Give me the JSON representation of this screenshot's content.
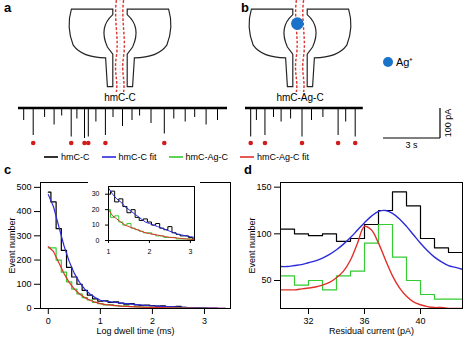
{
  "diagrams": [
    {
      "panel": "a",
      "label": "hmC-C",
      "trace": {
        "xlim": [
          0,
          11
        ],
        "events": [
          {
            "time": 0.3,
            "depth": 40
          },
          {
            "time": 0.8,
            "depth": 90
          },
          {
            "time": 1.4,
            "depth": 30
          },
          {
            "time": 1.9,
            "depth": 55
          },
          {
            "time": 2.3,
            "depth": 25
          },
          {
            "time": 2.8,
            "depth": 95
          },
          {
            "time": 3.1,
            "depth": 35
          },
          {
            "time": 3.5,
            "depth": 100
          },
          {
            "time": 3.7,
            "depth": 95
          },
          {
            "time": 4.1,
            "depth": 45
          },
          {
            "time": 4.6,
            "depth": 90
          },
          {
            "time": 5.0,
            "depth": 30
          },
          {
            "time": 5.5,
            "depth": 60
          },
          {
            "time": 6.0,
            "depth": 40
          },
          {
            "time": 6.4,
            "depth": 25
          },
          {
            "time": 7.0,
            "depth": 50
          },
          {
            "time": 7.7,
            "depth": 85
          },
          {
            "time": 8.2,
            "depth": 35
          },
          {
            "time": 8.8,
            "depth": 45
          },
          {
            "time": 9.3,
            "depth": 30
          },
          {
            "time": 9.9,
            "depth": 55
          },
          {
            "time": 10.5,
            "depth": 40
          }
        ],
        "marked_times": [
          0.8,
          2.8,
          3.5,
          3.7,
          4.6,
          7.7
        ]
      }
    },
    {
      "panel": "b",
      "label": "hmC-Ag-C",
      "ion_label": "Ag⁺",
      "trace": {
        "xlim": [
          0,
          6.2
        ],
        "events": [
          {
            "time": 0.3,
            "depth": 95
          },
          {
            "time": 0.6,
            "depth": 40
          },
          {
            "time": 1.05,
            "depth": 90
          },
          {
            "time": 1.5,
            "depth": 30
          },
          {
            "time": 1.9,
            "depth": 45
          },
          {
            "time": 2.4,
            "depth": 35
          },
          {
            "time": 3.0,
            "depth": 95
          },
          {
            "time": 3.5,
            "depth": 40
          },
          {
            "time": 4.1,
            "depth": 30
          },
          {
            "time": 4.9,
            "depth": 90
          },
          {
            "time": 5.3,
            "depth": 45
          },
          {
            "time": 5.8,
            "depth": 95
          }
        ],
        "marked_times": [
          0.3,
          1.05,
          3.0,
          4.9,
          5.8
        ]
      }
    }
  ],
  "scale_bar": {
    "current": 100,
    "current_label": "100 pA",
    "time": 3,
    "time_label": "3 s"
  },
  "chart_data": [
    {
      "panel": "c",
      "type": "line",
      "xlabel": "Log dwell time (ms)",
      "ylabel": "Event number",
      "xlim": [
        -0.15,
        3.5
      ],
      "ylim": [
        0,
        520
      ],
      "xticks": [
        0,
        1,
        2,
        3
      ],
      "yticks": [
        0,
        100,
        200,
        300,
        400,
        500
      ],
      "legend": "top",
      "x": [
        0,
        0.1,
        0.2,
        0.3,
        0.4,
        0.5,
        0.6,
        0.7,
        0.8,
        0.9,
        1.0,
        1.1,
        1.2,
        1.3,
        1.4,
        1.5,
        1.6,
        1.7,
        1.8,
        1.9,
        2.0,
        2.1,
        2.2,
        2.3,
        2.4,
        2.5,
        2.6,
        2.7,
        2.8,
        2.9,
        3.0,
        3.1,
        3.2,
        3.3,
        3.4
      ],
      "series": [
        {
          "name": "hmC-C",
          "color": "#000000",
          "line_style": "step",
          "values": [
            480,
            440,
            330,
            240,
            170,
            130,
            100,
            75,
            55,
            40,
            30,
            32,
            25,
            27,
            22,
            18,
            20,
            15,
            13,
            14,
            12,
            10,
            11,
            8,
            7,
            9,
            5,
            4,
            3,
            3,
            2,
            1,
            1,
            0,
            0
          ]
        },
        {
          "name": "hmC-C fit",
          "color": "#2b2bd9",
          "line_style": "solid",
          "values": [
            470,
            420,
            340,
            260,
            195,
            145,
            108,
            80,
            60,
            45,
            34,
            30,
            27,
            25,
            22,
            20,
            18,
            16,
            14,
            12,
            11,
            10,
            9,
            8,
            7,
            6,
            5,
            4,
            3.5,
            3,
            2.5,
            2,
            1.5,
            1,
            1
          ]
        },
        {
          "name": "hmC-Ag-C",
          "color": "#33cc33",
          "line_style": "step",
          "values": [
            250,
            250,
            200,
            150,
            110,
            80,
            60,
            45,
            35,
            25,
            20,
            15,
            16,
            12,
            10,
            11,
            8,
            7,
            6,
            5,
            5,
            4,
            3,
            3,
            2,
            2,
            2,
            1,
            1,
            1,
            1,
            0,
            0,
            0,
            0
          ]
        },
        {
          "name": "hmC-Ag-C fit",
          "color": "#e0302a",
          "line_style": "solid",
          "values": [
            255,
            235,
            190,
            145,
            108,
            80,
            60,
            45,
            34,
            26,
            20,
            16,
            14,
            12,
            10,
            9,
            8,
            7,
            6,
            5,
            4.5,
            4,
            3.5,
            3,
            2.5,
            2,
            1.8,
            1.5,
            1.2,
            1,
            0.8,
            0.6,
            0.4,
            0.3,
            0.2
          ]
        }
      ],
      "inset": {
        "xlim": [
          1,
          3.1
        ],
        "ylim": [
          0,
          35
        ],
        "xticks": [
          1,
          2,
          3
        ],
        "yticks": [
          0,
          10,
          20,
          30
        ]
      }
    },
    {
      "panel": "d",
      "type": "histogram",
      "xlabel": "Residual current (pA)",
      "ylabel": "Event number",
      "xlim": [
        30,
        43
      ],
      "ylim": [
        20,
        155
      ],
      "xticks": [
        32,
        36,
        40
      ],
      "yticks": [
        50,
        100,
        150
      ],
      "bins": [
        30,
        31,
        32,
        33,
        34,
        35,
        36,
        37,
        38,
        39,
        40,
        41,
        42,
        43
      ],
      "series": [
        {
          "color": "#000000",
          "counts": [
            105,
            100,
            98,
            100,
            92,
            95,
            110,
            125,
            145,
            130,
            95,
            85,
            80
          ]
        },
        {
          "color": "#33cc33",
          "counts": [
            55,
            45,
            50,
            40,
            55,
            60,
            90,
            110,
            75,
            50,
            35,
            30,
            30
          ]
        }
      ],
      "fits": {
        "x": [
          30,
          30.5,
          31,
          31.5,
          32,
          32.5,
          33,
          33.5,
          34,
          34.5,
          35,
          35.5,
          36,
          36.5,
          37,
          37.5,
          38,
          38.5,
          39,
          39.5,
          40,
          40.5,
          41,
          41.5,
          42,
          42.5,
          43
        ],
        "series": [
          {
            "color": "#2b2bd9",
            "values": [
              65,
              65,
              66,
              67,
              69,
              71,
              74,
              78,
              83,
              89,
              96,
              104,
              112,
              119,
              124,
              125,
              122,
              116,
              108,
              99,
              90,
              82,
              75,
              70,
              66,
              64,
              62
            ]
          },
          {
            "color": "#e0302a",
            "values": [
              40,
              40,
              40,
              41,
              42,
              43,
              45,
              48,
              53,
              60,
              72,
              90,
              108,
              104,
              90,
              72,
              55,
              42,
              33,
              27,
              24,
              22,
              21,
              21,
              20,
              20,
              20
            ]
          }
        ]
      }
    }
  ]
}
